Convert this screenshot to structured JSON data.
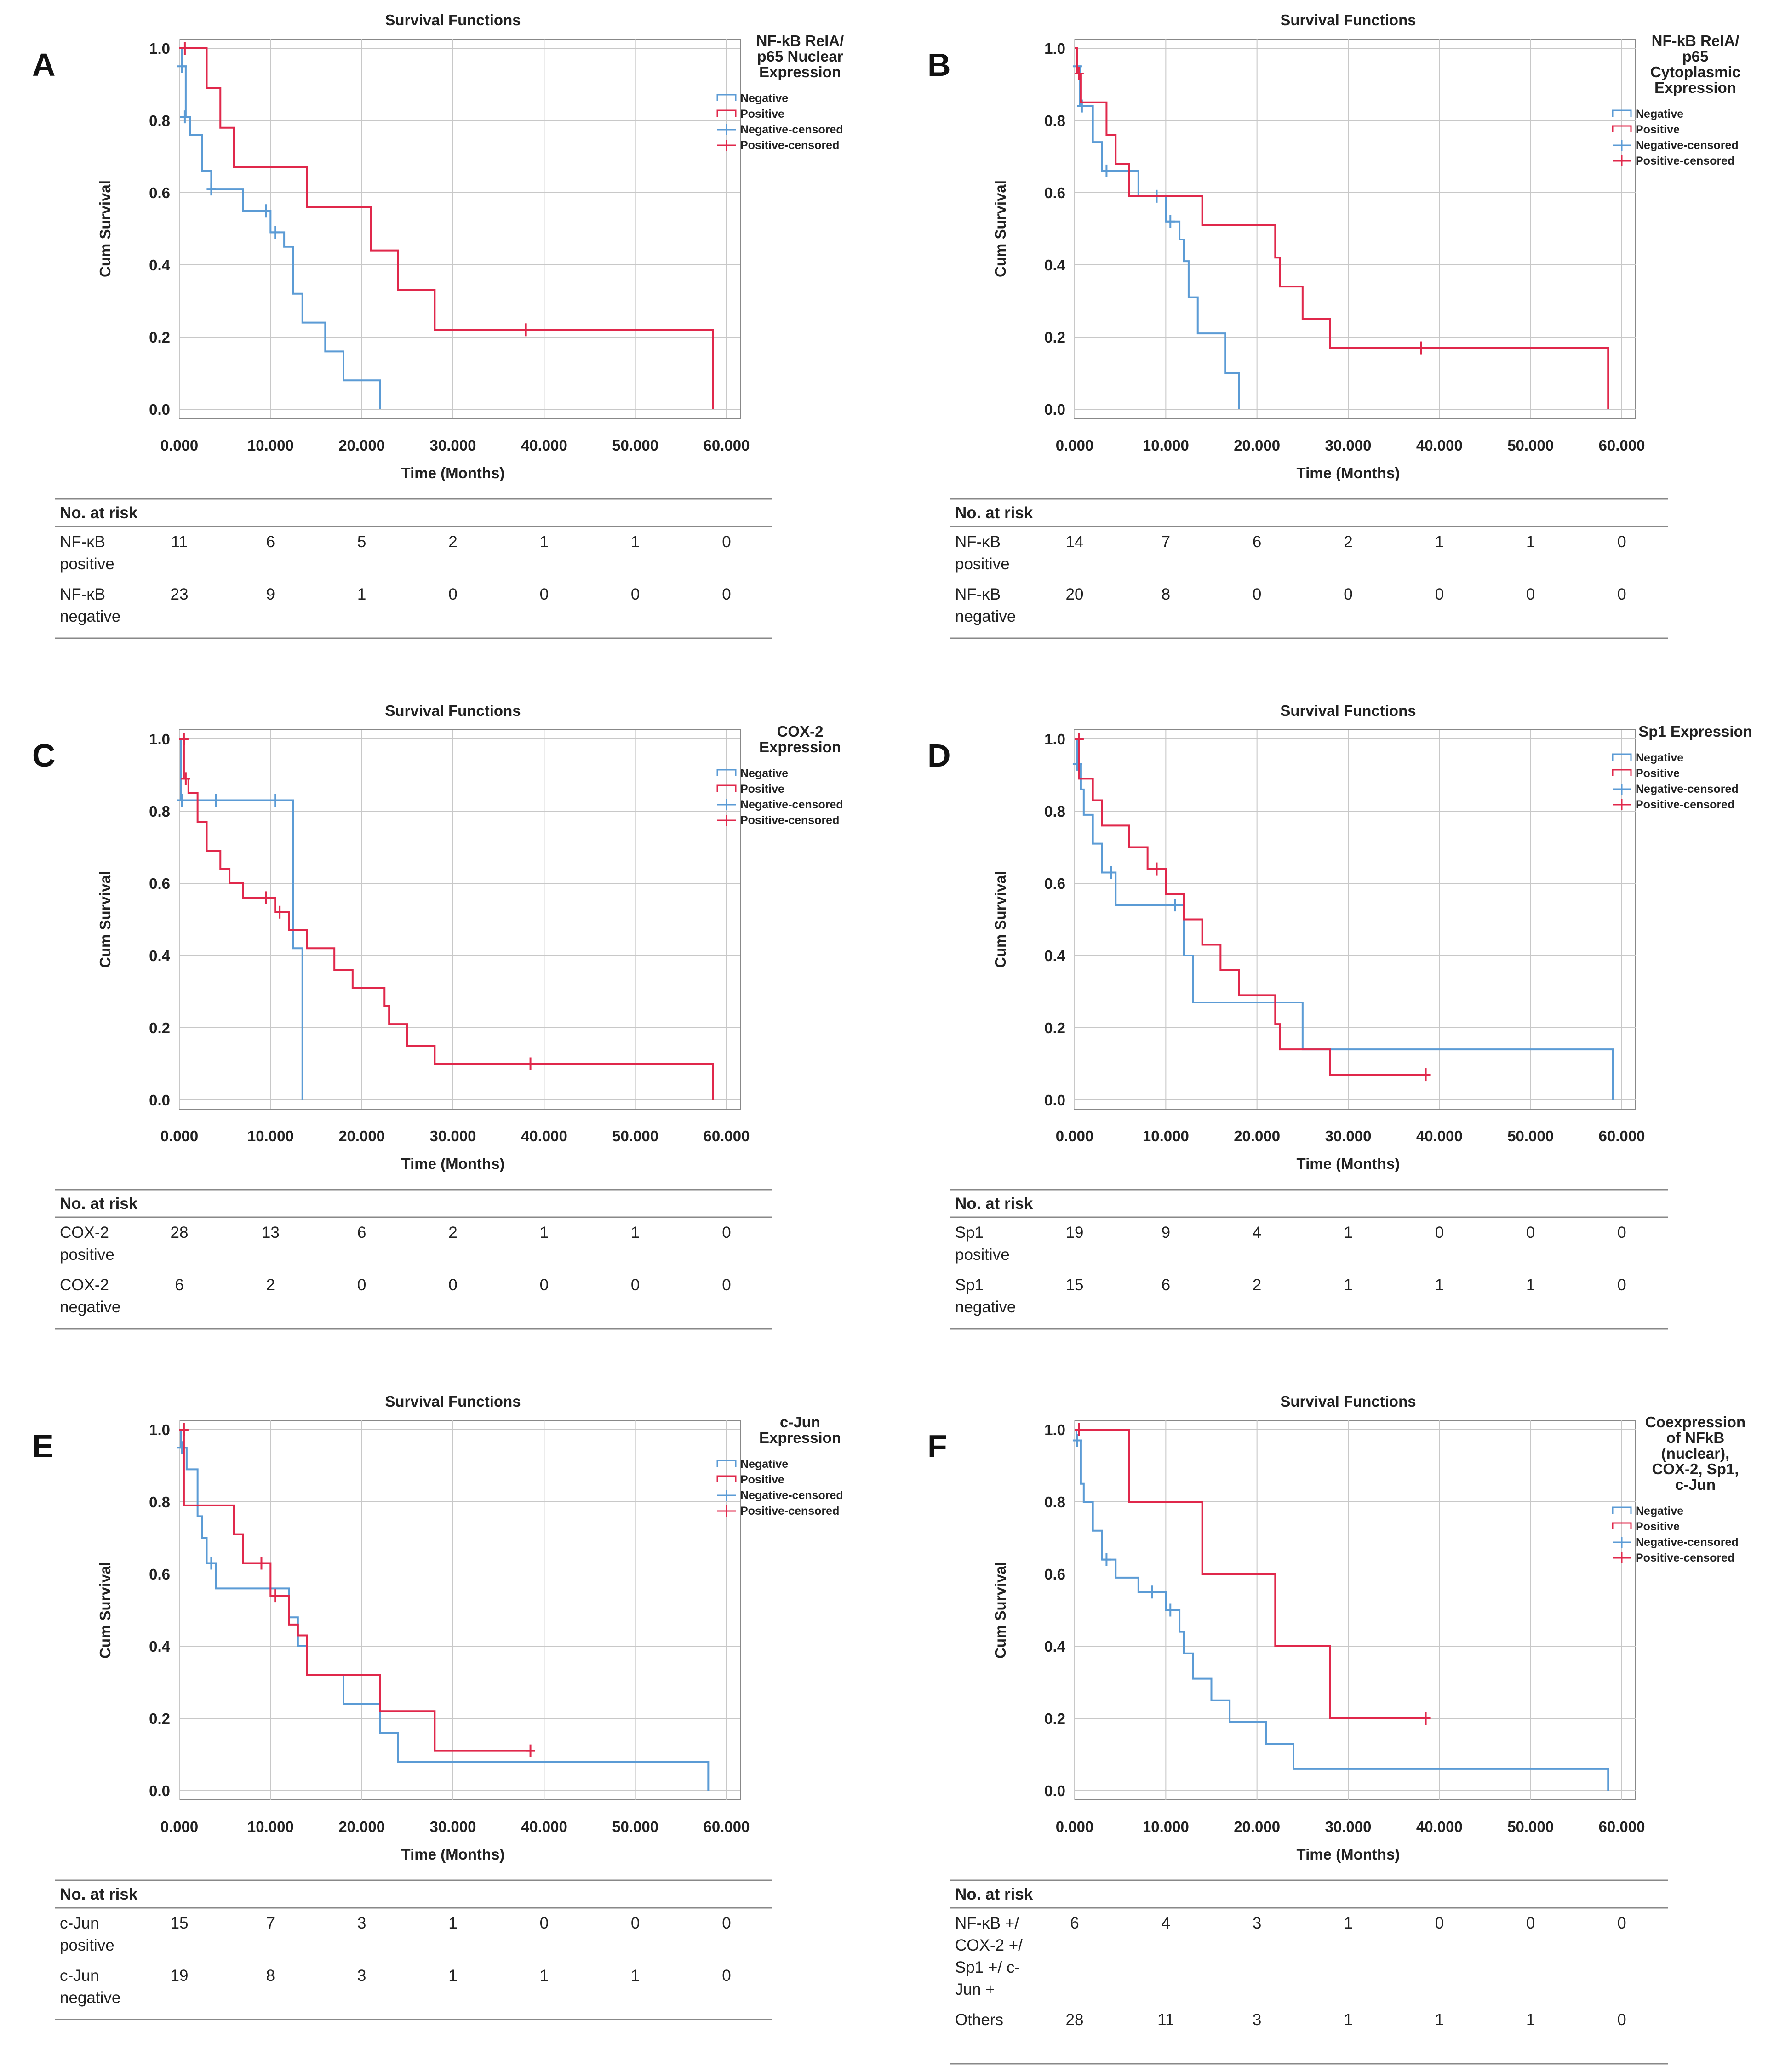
{
  "colors": {
    "negative": "#5b9bd5",
    "positive": "#e0284b",
    "grid": "#c8c8c8",
    "axis": "#888888"
  },
  "axis_common": {
    "title": "Survival Functions",
    "xlabel": "Time (Months)",
    "ylabel": "Cum Survival",
    "xticks": [
      "0.000",
      "10.000",
      "20.000",
      "30.000",
      "40.000",
      "50.000",
      "60.000"
    ],
    "yticks": [
      "0.0",
      "0.2",
      "0.4",
      "0.6",
      "0.8",
      "1.0"
    ],
    "legend_items": [
      "Negative",
      "Positive",
      "Negative-censored",
      "Positive-censored"
    ],
    "risk_header": "No. at risk"
  },
  "chart_data": [
    {
      "panel": "A",
      "type": "line",
      "legend_title": "NF-kB RelA/ p65 Nuclear Expression",
      "xlim": [
        0,
        60
      ],
      "ylim": [
        0,
        1
      ],
      "grid": true,
      "legend_placement": "top-right",
      "series": [
        {
          "name": "Negative",
          "steps": [
            [
              0,
              1
            ],
            [
              0.3,
              0.95
            ],
            [
              0.7,
              0.81
            ],
            [
              1.2,
              0.76
            ],
            [
              2.5,
              0.66
            ],
            [
              3.5,
              0.61
            ],
            [
              7,
              0.55
            ],
            [
              10,
              0.49
            ],
            [
              11.5,
              0.45
            ],
            [
              12.5,
              0.32
            ],
            [
              13.5,
              0.24
            ],
            [
              16,
              0.16
            ],
            [
              18,
              0.08
            ],
            [
              22,
              0
            ]
          ],
          "censored": [
            [
              0.3,
              0.95
            ],
            [
              0.6,
              0.81
            ],
            [
              3.5,
              0.61
            ],
            [
              9.5,
              0.55
            ],
            [
              10.5,
              0.49
            ]
          ]
        },
        {
          "name": "Positive",
          "steps": [
            [
              0,
              1
            ],
            [
              3,
              0.89
            ],
            [
              4.5,
              0.78
            ],
            [
              6,
              0.67
            ],
            [
              14,
              0.56
            ],
            [
              21,
              0.44
            ],
            [
              24,
              0.33
            ],
            [
              28,
              0.22
            ],
            [
              58.5,
              0
            ]
          ],
          "censored": [
            [
              0.6,
              1
            ],
            [
              38,
              0.22
            ]
          ]
        }
      ],
      "risk_rows": [
        {
          "label": [
            "NF-κB",
            "positive"
          ],
          "values": [
            "11",
            "6",
            "5",
            "2",
            "1",
            "1",
            "0"
          ]
        },
        {
          "label": [
            "NF-κB",
            "negative"
          ],
          "values": [
            "23",
            "9",
            "1",
            "0",
            "0",
            "0",
            "0"
          ]
        }
      ]
    },
    {
      "panel": "B",
      "type": "line",
      "legend_title": "NF-kB RelA/ p65 Cytoplasmic Expression",
      "xlim": [
        0,
        60
      ],
      "ylim": [
        0,
        1
      ],
      "grid": true,
      "legend_placement": "top-right",
      "series": [
        {
          "name": "Negative",
          "steps": [
            [
              0,
              1
            ],
            [
              0.2,
              0.95
            ],
            [
              0.6,
              0.84
            ],
            [
              2,
              0.74
            ],
            [
              3,
              0.66
            ],
            [
              7,
              0.59
            ],
            [
              10,
              0.52
            ],
            [
              11.5,
              0.47
            ],
            [
              12,
              0.41
            ],
            [
              12.5,
              0.31
            ],
            [
              13.5,
              0.21
            ],
            [
              16.5,
              0.1
            ],
            [
              18,
              0
            ]
          ],
          "censored": [
            [
              0.3,
              0.95
            ],
            [
              0.8,
              0.84
            ],
            [
              3.5,
              0.66
            ],
            [
              9,
              0.59
            ],
            [
              10.5,
              0.52
            ]
          ]
        },
        {
          "name": "Positive",
          "steps": [
            [
              0,
              1
            ],
            [
              0.3,
              0.93
            ],
            [
              0.7,
              0.85
            ],
            [
              3.5,
              0.76
            ],
            [
              4.5,
              0.68
            ],
            [
              6,
              0.59
            ],
            [
              14,
              0.51
            ],
            [
              22,
              0.42
            ],
            [
              22.5,
              0.34
            ],
            [
              25,
              0.25
            ],
            [
              28,
              0.17
            ],
            [
              58.5,
              0
            ]
          ],
          "censored": [
            [
              0.5,
              0.93
            ],
            [
              38,
              0.17
            ]
          ]
        }
      ],
      "risk_rows": [
        {
          "label": [
            "NF-κB",
            "positive"
          ],
          "values": [
            "14",
            "7",
            "6",
            "2",
            "1",
            "1",
            "0"
          ]
        },
        {
          "label": [
            "NF-κB",
            "negative"
          ],
          "values": [
            "20",
            "8",
            "0",
            "0",
            "0",
            "0",
            "0"
          ]
        }
      ]
    },
    {
      "panel": "C",
      "type": "line",
      "legend_title": "COX-2 Expression",
      "xlim": [
        0,
        60
      ],
      "ylim": [
        0,
        1
      ],
      "grid": true,
      "legend_placement": "top-right",
      "series": [
        {
          "name": "Negative",
          "steps": [
            [
              0,
              1
            ],
            [
              0.2,
              0.83
            ],
            [
              12.5,
              0.42
            ],
            [
              13.5,
              0
            ]
          ],
          "censored": [
            [
              0.3,
              0.83
            ],
            [
              4,
              0.83
            ],
            [
              10.5,
              0.83
            ]
          ]
        },
        {
          "name": "Positive",
          "steps": [
            [
              0,
              1
            ],
            [
              0.5,
              0.89
            ],
            [
              1,
              0.85
            ],
            [
              2,
              0.77
            ],
            [
              3,
              0.69
            ],
            [
              4.5,
              0.64
            ],
            [
              5.5,
              0.6
            ],
            [
              7,
              0.56
            ],
            [
              10.5,
              0.52
            ],
            [
              12,
              0.47
            ],
            [
              14,
              0.42
            ],
            [
              17,
              0.36
            ],
            [
              19,
              0.31
            ],
            [
              22.5,
              0.26
            ],
            [
              23,
              0.21
            ],
            [
              25,
              0.15
            ],
            [
              28,
              0.1
            ],
            [
              58.5,
              0
            ]
          ],
          "censored": [
            [
              0.5,
              1
            ],
            [
              0.7,
              0.89
            ],
            [
              9.5,
              0.56
            ],
            [
              11,
              0.52
            ],
            [
              38.5,
              0.1
            ]
          ]
        }
      ],
      "risk_rows": [
        {
          "label": [
            "COX-2",
            "positive"
          ],
          "values": [
            "28",
            "13",
            "6",
            "2",
            "1",
            "1",
            "0"
          ]
        },
        {
          "label": [
            "COX-2",
            "negative"
          ],
          "values": [
            "6",
            "2",
            "0",
            "0",
            "0",
            "0",
            "0"
          ]
        }
      ]
    },
    {
      "panel": "D",
      "type": "line",
      "legend_title": "Sp1 Expression",
      "xlim": [
        0,
        60
      ],
      "ylim": [
        0,
        1
      ],
      "grid": true,
      "legend_placement": "top-right",
      "series": [
        {
          "name": "Negative",
          "steps": [
            [
              0,
              1
            ],
            [
              0.3,
              0.93
            ],
            [
              0.7,
              0.86
            ],
            [
              1,
              0.79
            ],
            [
              2,
              0.71
            ],
            [
              3,
              0.63
            ],
            [
              4.5,
              0.54
            ],
            [
              10.5,
              0.54
            ],
            [
              12,
              0.4
            ],
            [
              13,
              0.27
            ],
            [
              25,
              0.14
            ],
            [
              59,
              0
            ]
          ],
          "censored": [
            [
              0.3,
              0.93
            ],
            [
              4,
              0.63
            ],
            [
              11,
              0.54
            ]
          ]
        },
        {
          "name": "Positive",
          "steps": [
            [
              0,
              1
            ],
            [
              0.5,
              0.89
            ],
            [
              2,
              0.83
            ],
            [
              3,
              0.76
            ],
            [
              6,
              0.7
            ],
            [
              8,
              0.64
            ],
            [
              10,
              0.57
            ],
            [
              12,
              0.5
            ],
            [
              14,
              0.43
            ],
            [
              16,
              0.36
            ],
            [
              18,
              0.29
            ],
            [
              22,
              0.21
            ],
            [
              22.5,
              0.14
            ],
            [
              28,
              0.07
            ],
            [
              38.5,
              0.07
            ]
          ],
          "censored": [
            [
              0.5,
              1
            ],
            [
              9,
              0.64
            ],
            [
              38.5,
              0.07
            ]
          ]
        }
      ],
      "risk_rows": [
        {
          "label": [
            "Sp1",
            "positive"
          ],
          "values": [
            "19",
            "9",
            "4",
            "1",
            "0",
            "0",
            "0"
          ]
        },
        {
          "label": [
            "Sp1",
            "negative"
          ],
          "values": [
            "15",
            "6",
            "2",
            "1",
            "1",
            "1",
            "0"
          ]
        }
      ]
    },
    {
      "panel": "E",
      "type": "line",
      "legend_title": "c-Jun Expression",
      "xlim": [
        0,
        60
      ],
      "ylim": [
        0,
        1
      ],
      "grid": true,
      "legend_placement": "top-right",
      "series": [
        {
          "name": "Negative",
          "steps": [
            [
              0,
              1
            ],
            [
              0.2,
              0.95
            ],
            [
              0.8,
              0.89
            ],
            [
              2,
              0.76
            ],
            [
              2.5,
              0.7
            ],
            [
              3,
              0.63
            ],
            [
              4,
              0.56
            ],
            [
              12,
              0.48
            ],
            [
              13,
              0.4
            ],
            [
              14,
              0.32
            ],
            [
              16,
              0.32
            ],
            [
              18,
              0.24
            ],
            [
              22,
              0.16
            ],
            [
              24,
              0.08
            ],
            [
              58,
              0
            ]
          ],
          "censored": [
            [
              0.3,
              0.95
            ],
            [
              3.5,
              0.63
            ]
          ]
        },
        {
          "name": "Positive",
          "steps": [
            [
              0,
              1
            ],
            [
              0.5,
              0.79
            ],
            [
              6,
              0.71
            ],
            [
              7,
              0.63
            ],
            [
              10,
              0.54
            ],
            [
              12,
              0.46
            ],
            [
              13,
              0.43
            ],
            [
              14,
              0.32
            ],
            [
              22,
              0.22
            ],
            [
              28,
              0.11
            ],
            [
              38.5,
              0.11
            ]
          ],
          "censored": [
            [
              0.5,
              1
            ],
            [
              9,
              0.63
            ],
            [
              10.5,
              0.54
            ],
            [
              38.5,
              0.11
            ]
          ]
        }
      ],
      "risk_rows": [
        {
          "label": [
            "c-Jun",
            "positive"
          ],
          "values": [
            "15",
            "7",
            "3",
            "1",
            "0",
            "0",
            "0"
          ]
        },
        {
          "label": [
            "c-Jun",
            "negative"
          ],
          "values": [
            "19",
            "8",
            "3",
            "1",
            "1",
            "1",
            "0"
          ]
        }
      ]
    },
    {
      "panel": "F",
      "type": "line",
      "legend_title": "Coexpression of NFkB (nuclear), COX-2, Sp1, c-Jun",
      "xlim": [
        0,
        60
      ],
      "ylim": [
        0,
        1
      ],
      "grid": true,
      "legend_placement": "top-right",
      "series": [
        {
          "name": "Negative",
          "steps": [
            [
              0,
              1
            ],
            [
              0.2,
              0.97
            ],
            [
              0.7,
              0.85
            ],
            [
              1,
              0.8
            ],
            [
              2,
              0.72
            ],
            [
              3,
              0.64
            ],
            [
              4.5,
              0.59
            ],
            [
              7,
              0.55
            ],
            [
              10,
              0.5
            ],
            [
              11.5,
              0.44
            ],
            [
              12,
              0.38
            ],
            [
              13,
              0.31
            ],
            [
              15,
              0.25
            ],
            [
              17,
              0.19
            ],
            [
              21,
              0.13
            ],
            [
              24,
              0.06
            ],
            [
              58.5,
              0
            ]
          ],
          "censored": [
            [
              0.3,
              0.97
            ],
            [
              3.5,
              0.64
            ],
            [
              8.5,
              0.55
            ],
            [
              10.5,
              0.5
            ]
          ]
        },
        {
          "name": "Positive",
          "steps": [
            [
              0,
              1
            ],
            [
              6,
              0.8
            ],
            [
              14,
              0.6
            ],
            [
              22,
              0.4
            ],
            [
              28,
              0.2
            ],
            [
              38.5,
              0.2
            ]
          ],
          "censored": [
            [
              0.5,
              1
            ],
            [
              38.5,
              0.2
            ]
          ]
        }
      ],
      "risk_rows": [
        {
          "label": [
            "NF-κB +/",
            "COX-2 +/",
            "Sp1 +/ c-",
            "Jun +"
          ],
          "values": [
            "6",
            "4",
            "3",
            "1",
            "0",
            "0",
            "0"
          ]
        },
        {
          "label": [
            "Others"
          ],
          "values": [
            "28",
            "11",
            "3",
            "1",
            "1",
            "1",
            "0"
          ]
        }
      ]
    }
  ]
}
